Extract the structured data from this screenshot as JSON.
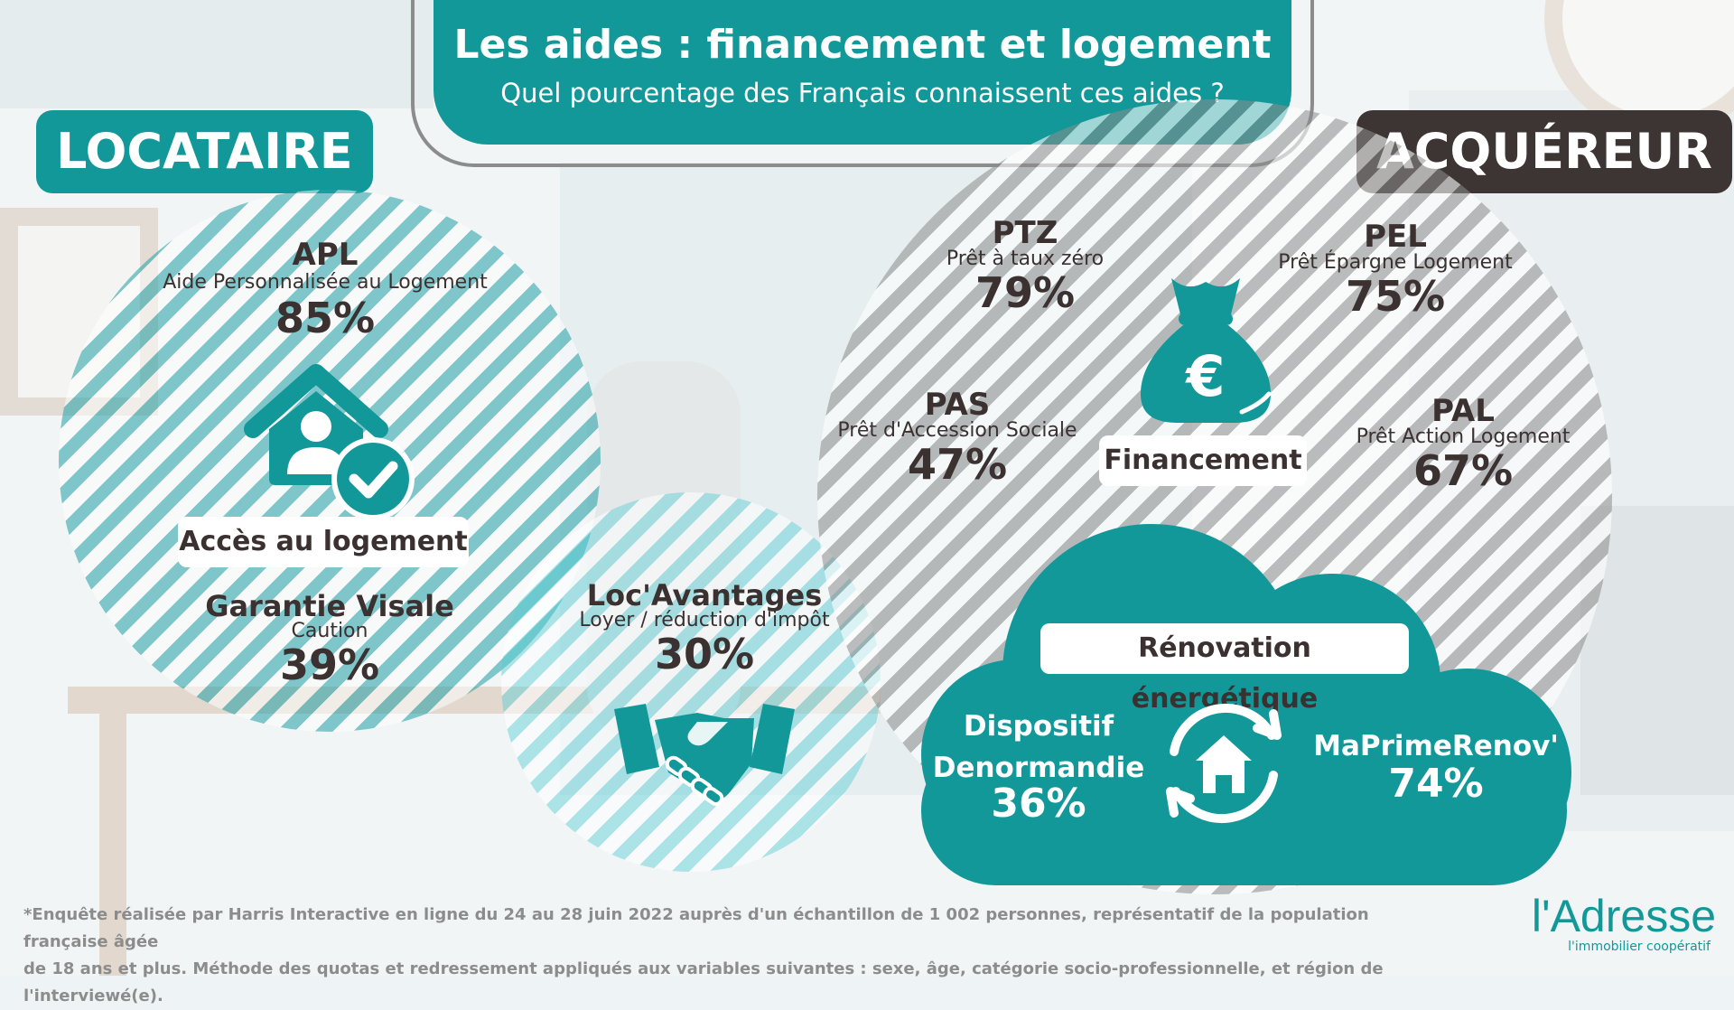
{
  "header": {
    "title": "Les aides : financement et logement",
    "subtitle": "Quel pourcentage des Français connaissent ces aides ?"
  },
  "roles": {
    "tenant": "LOCATAIRE",
    "buyer": "ACQUÉREUR"
  },
  "tenant": {
    "apl": {
      "code": "APL",
      "name": "Aide Personnalisée au Logement",
      "value": "85%"
    },
    "access_label": "Accès au logement",
    "visale": {
      "code": "Garantie Visale",
      "name": "Caution",
      "value": "39%"
    },
    "locav": {
      "code": "Loc'Avantages",
      "name": "Loyer / réduction d'impôt",
      "value": "30%"
    }
  },
  "buyer": {
    "ptz": {
      "code": "PTZ",
      "name": "Prêt à taux zéro",
      "value": "79%"
    },
    "pel": {
      "code": "PEL",
      "name": "Prêt Épargne Logement",
      "value": "75%"
    },
    "pas": {
      "code": "PAS",
      "name": "Prêt d'Accession Sociale",
      "value": "47%"
    },
    "pal": {
      "code": "PAL",
      "name": "Prêt Action Logement",
      "value": "67%"
    },
    "financing_label": "Financement",
    "renovation_label": "Rénovation énergétique",
    "denormandie": {
      "line1": "Dispositif",
      "line2": "Denormandie",
      "value": "36%"
    },
    "maprimerenov": {
      "name": "MaPrimeRenov'",
      "value": "74%"
    }
  },
  "footer": {
    "line1": "*Enquête réalisée par Harris Interactive en ligne du 24 au 28 juin 2022 auprès d'un échantillon de 1 002 personnes, représentatif de la population française âgée",
    "line2": "de 18 ans et plus. Méthode des quotas et redressement appliqués aux variables suivantes : sexe, âge, catégorie socio-professionnelle, et région de l'interviewé(e)."
  },
  "logo": {
    "name": "l'Adresse",
    "tagline": "l'immobilier coopératif"
  },
  "colors": {
    "teal": "#13989a",
    "dark": "#3a3130",
    "grey": "#8c8c8c"
  }
}
